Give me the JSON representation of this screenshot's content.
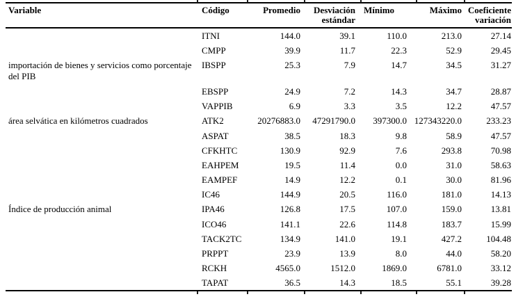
{
  "colors": {
    "text": "#000000",
    "background": "#ffffff",
    "rule": "#000000"
  },
  "table": {
    "columns": [
      {
        "key": "variable",
        "label": "Variable"
      },
      {
        "key": "codigo",
        "label": "Código"
      },
      {
        "key": "promedio",
        "label": "Promedio"
      },
      {
        "key": "desviacion",
        "label": "Desviación estándar"
      },
      {
        "key": "minimo",
        "label": "Mínimo"
      },
      {
        "key": "maximo",
        "label": "Máximo"
      },
      {
        "key": "coeficiente",
        "label": "Coeficiente variación"
      }
    ],
    "rows": [
      {
        "variable": "",
        "codigo": "ITNI",
        "promedio": "144.0",
        "desviacion": "39.1",
        "minimo": "110.0",
        "maximo": "213.0",
        "coeficiente": "27.14"
      },
      {
        "variable": "",
        "codigo": "CMPP",
        "promedio": "39.9",
        "desviacion": "11.7",
        "minimo": "22.3",
        "maximo": "52.9",
        "coeficiente": "29.45"
      },
      {
        "variable": "importación de bienes y servicios como porcentaje del PIB",
        "codigo": "IBSPP",
        "promedio": "25.3",
        "desviacion": "7.9",
        "minimo": "14.7",
        "maximo": "34.5",
        "coeficiente": "31.27"
      },
      {
        "variable": "",
        "codigo": "EBSPP",
        "promedio": "24.9",
        "desviacion": "7.2",
        "minimo": "14.3",
        "maximo": "34.7",
        "coeficiente": "28.87"
      },
      {
        "variable": "",
        "codigo": "VAPPIB",
        "promedio": "6.9",
        "desviacion": "3.3",
        "minimo": "3.5",
        "maximo": "12.2",
        "coeficiente": "47.57"
      },
      {
        "variable": "área selvática en kilómetros cuadrados",
        "codigo": "ATK2",
        "promedio": "20276883.0",
        "desviacion": "47291790.0",
        "minimo": "397300.0",
        "maximo": "127343220.0",
        "coeficiente": "233.23"
      },
      {
        "variable": "",
        "codigo": "ASPAT",
        "promedio": "38.5",
        "desviacion": "18.3",
        "minimo": "9.8",
        "maximo": "58.9",
        "coeficiente": "47.57"
      },
      {
        "variable": "",
        "codigo": "CFKHTC",
        "promedio": "130.9",
        "desviacion": "92.9",
        "minimo": "7.6",
        "maximo": "293.8",
        "coeficiente": "70.98"
      },
      {
        "variable": "",
        "codigo": "EAHPEM",
        "promedio": "19.5",
        "desviacion": "11.4",
        "minimo": "0.0",
        "maximo": "31.0",
        "coeficiente": "58.63"
      },
      {
        "variable": "",
        "codigo": "EAMPEF",
        "promedio": "14.9",
        "desviacion": "12.2",
        "minimo": "0.1",
        "maximo": "30.0",
        "coeficiente": "81.96"
      },
      {
        "variable": "",
        "codigo": "IC46",
        "promedio": "144.9",
        "desviacion": "20.5",
        "minimo": "116.0",
        "maximo": "181.0",
        "coeficiente": "14.13"
      },
      {
        "variable": "Índice de producción animal",
        "codigo": "IPA46",
        "promedio": "126.8",
        "desviacion": "17.5",
        "minimo": "107.0",
        "maximo": "159.0",
        "coeficiente": "13.81"
      },
      {
        "variable": "",
        "codigo": "ICO46",
        "promedio": "141.1",
        "desviacion": "22.6",
        "minimo": "114.8",
        "maximo": "183.7",
        "coeficiente": "15.99"
      },
      {
        "variable": "",
        "codigo": "TACK2TC",
        "promedio": "134.9",
        "desviacion": "141.0",
        "minimo": "19.1",
        "maximo": "427.2",
        "coeficiente": "104.48"
      },
      {
        "variable": "",
        "codigo": "PRPPT",
        "promedio": "23.9",
        "desviacion": "13.9",
        "minimo": "8.0",
        "maximo": "44.0",
        "coeficiente": "58.20"
      },
      {
        "variable": "",
        "codigo": "RCKH",
        "promedio": "4565.0",
        "desviacion": "1512.0",
        "minimo": "1869.0",
        "maximo": "6781.0",
        "coeficiente": "33.12"
      },
      {
        "variable": "",
        "codigo": "TAPAT",
        "promedio": "36.5",
        "desviacion": "14.3",
        "minimo": "18.5",
        "maximo": "55.1",
        "coeficiente": "39.28"
      }
    ]
  }
}
